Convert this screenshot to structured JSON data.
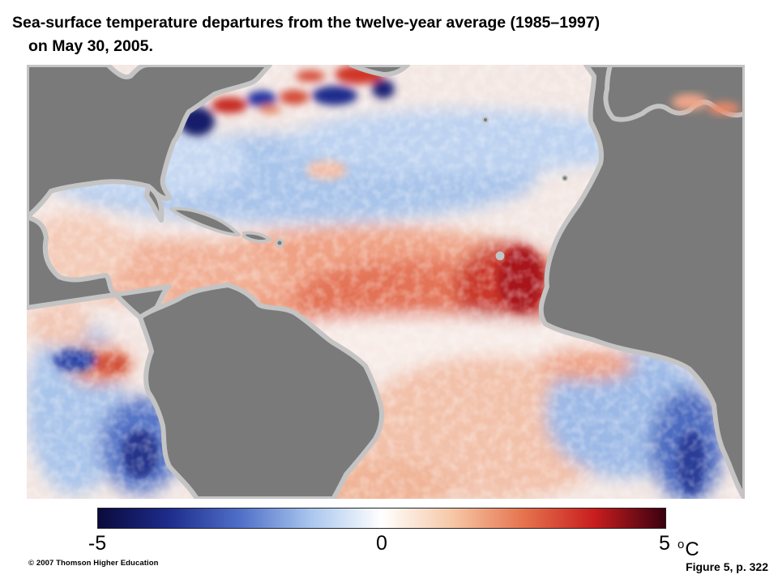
{
  "title": {
    "line1": "Sea-surface temperature departures from the twelve-year average (1985–1997)",
    "line2": "on May 30, 2005."
  },
  "map": {
    "subject": "North and South Atlantic Ocean sea-surface temperature anomaly",
    "land_color": "#7a7a7a",
    "coast_color": "#c4c4c4",
    "warm_colors": [
      "#f6d2bf",
      "#ee9a7c",
      "#dd5a3e",
      "#b81f1f"
    ],
    "cool_colors": [
      "#cfdff4",
      "#8fb0e2",
      "#3d5db5",
      "#16206e"
    ]
  },
  "colorbar": {
    "min_label": "-5",
    "mid_label": "0",
    "max_label": "5",
    "unit_degree": "o",
    "unit_letter": "C",
    "range": [
      -5,
      5
    ],
    "colors": [
      "#0a0a3c",
      "#1e2c8c",
      "#4f6fc8",
      "#a9c6ee",
      "#ffffff",
      "#f6c7a6",
      "#e6734e",
      "#c81e1e",
      "#3a0010"
    ]
  },
  "footer": {
    "copyright": "© 2007 Thomson Higher Education",
    "figure_ref": "Figure 5, p. 322"
  }
}
